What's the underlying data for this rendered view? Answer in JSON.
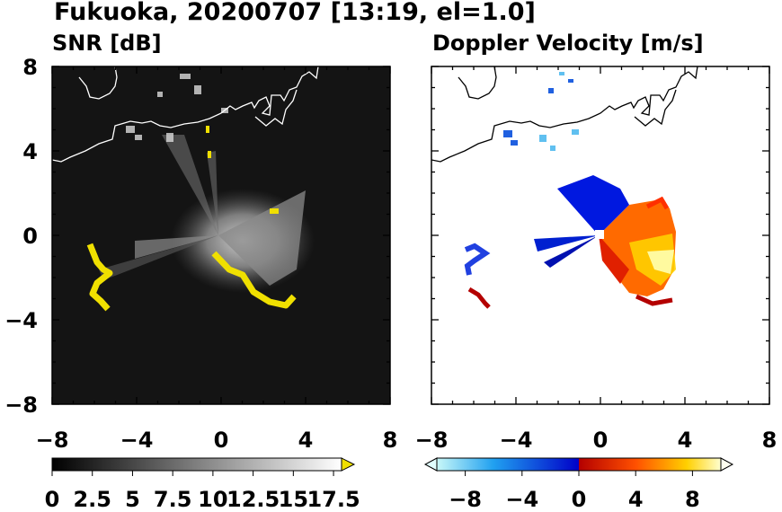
{
  "title": "Fukuoka, 20200707 [13:19, el=1.0]",
  "chart_data": [
    {
      "type": "heatmap",
      "title": "SNR [dB]",
      "xlim": [
        -8,
        8
      ],
      "ylim": [
        -8,
        8
      ],
      "x_ticks": [
        "−8",
        "−4",
        "0",
        "4",
        "8"
      ],
      "y_ticks": [
        "8",
        "4",
        "0",
        "−4",
        "−8"
      ],
      "colorbar": {
        "range": [
          0,
          18
        ],
        "tick_labels": [
          "0",
          "2.5",
          "5",
          "7.5",
          "10",
          "12.5",
          "15",
          "17.5"
        ],
        "extend": "max",
        "colors_low_to_high": [
          "#000000",
          "#ffffff"
        ],
        "over_color": "#f0e000"
      }
    },
    {
      "type": "heatmap",
      "title": "Doppler Velocity [m/s]",
      "xlim": [
        -8,
        8
      ],
      "ylim": [
        -8,
        8
      ],
      "x_ticks": [
        "−8",
        "−4",
        "0",
        "4",
        "8"
      ],
      "y_ticks": [
        "8",
        "4",
        "0",
        "−4",
        "−8"
      ],
      "colorbar": {
        "range": [
          -10,
          10
        ],
        "tick_labels": [
          "−8",
          "−4",
          "0",
          "4",
          "8"
        ],
        "extend": "both",
        "negative_colors": [
          "#c8f8f8",
          "#20a0f0",
          "#0000c8"
        ],
        "positive_colors": [
          "#b40000",
          "#ff5000",
          "#ffd000",
          "#ffffd0"
        ]
      }
    }
  ]
}
